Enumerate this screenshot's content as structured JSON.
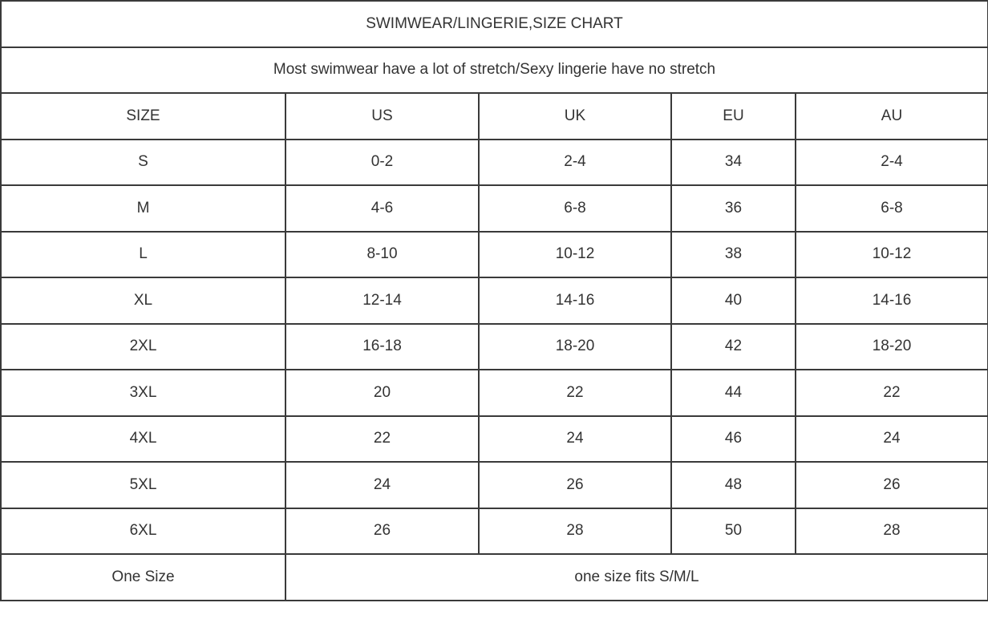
{
  "title": "SWIMWEAR/LINGERIE,SIZE CHART",
  "subtitle": "Most swimwear have a lot of stretch/Sexy lingerie have no stretch",
  "headers": [
    "SIZE",
    "US",
    "UK",
    "EU",
    "AU"
  ],
  "rows": [
    [
      "S",
      "0-2",
      "2-4",
      "34",
      "2-4"
    ],
    [
      "M",
      "4-6",
      "6-8",
      "36",
      "6-8"
    ],
    [
      "L",
      "8-10",
      "10-12",
      "38",
      "10-12"
    ],
    [
      "XL",
      "12-14",
      "14-16",
      "40",
      "14-16"
    ],
    [
      "2XL",
      "16-18",
      "18-20",
      "42",
      "18-20"
    ],
    [
      "3XL",
      "20",
      "22",
      "44",
      "22"
    ],
    [
      "4XL",
      "22",
      "24",
      "46",
      "24"
    ],
    [
      "5XL",
      "24",
      "26",
      "48",
      "26"
    ],
    [
      "6XL",
      "26",
      "28",
      "50",
      "28"
    ]
  ],
  "one_size": {
    "label": "One Size",
    "value": "one size fits S/M/L"
  }
}
